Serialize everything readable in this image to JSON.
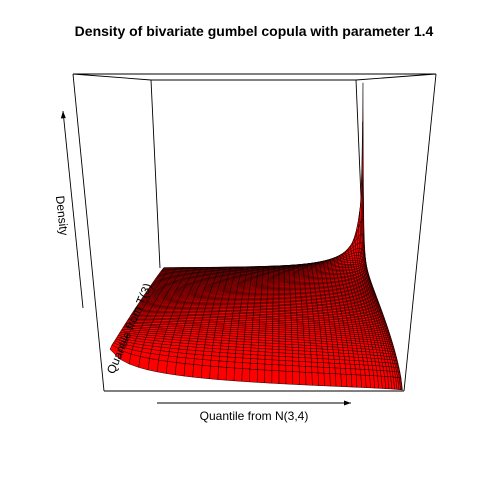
{
  "chart_data": {
    "type": "surface3d",
    "title": "Density of bivariate gumbel copula with parameter 1.4",
    "copula": "gumbel",
    "parameter": 1.4,
    "xlabel": "Quantile from N(3,4)",
    "ylabel": "Quantile from T(3)",
    "zlabel": "Density",
    "surface_color": "#ff0000",
    "mesh_color": "#000000",
    "box_color": "#000000",
    "grid": false
  }
}
